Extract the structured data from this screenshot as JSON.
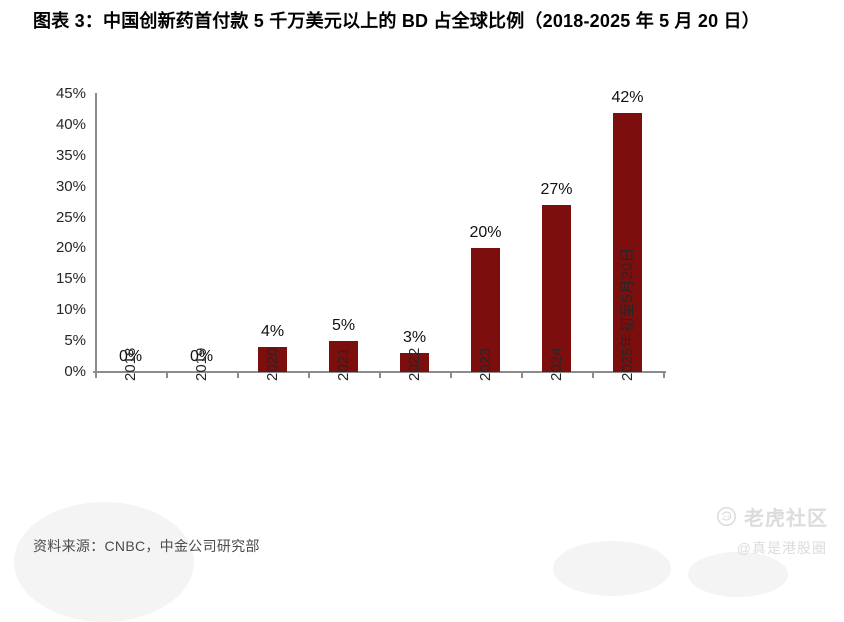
{
  "header": {
    "title": "图表 3：中国创新药首付款 5 千万美元以上的 BD 占全球比例（2018-2025 年 5 月 20 日）"
  },
  "chart_data": {
    "type": "bar",
    "title": "中国创新药首付款 5 千万美元以上的 BD 占全球比例（2018-2025 年 5 月 20 日）",
    "categories": [
      "2018",
      "2019",
      "2020",
      "2021",
      "2022",
      "2023",
      "2024",
      "2025年初至5月20日"
    ],
    "values": [
      0,
      0,
      4,
      5,
      3,
      20,
      27,
      42
    ],
    "data_labels": [
      "0%",
      "0%",
      "4%",
      "5%",
      "3%",
      "20%",
      "27%",
      "42%"
    ],
    "y_tick_labels": [
      "0%",
      "5%",
      "10%",
      "15%",
      "20%",
      "25%",
      "30%",
      "35%",
      "40%",
      "45%"
    ],
    "ylim": [
      0,
      45
    ],
    "y_tick_step": 5,
    "xlabel": "",
    "ylabel": "",
    "grid": false,
    "legend": "none",
    "bar_color": "#7D0E0E",
    "axis_color": "#8C8C8C",
    "tick_label_color": "#262626",
    "value_label_color": "#111111"
  },
  "footer": {
    "source": "资料来源：CNBC，中金公司研究部"
  },
  "watermark": {
    "brand": "老虎社区",
    "handle": "@真是港股圈"
  }
}
